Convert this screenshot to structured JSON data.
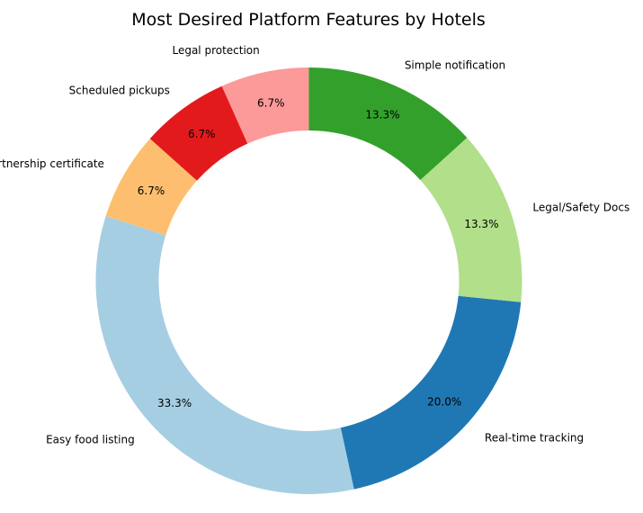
{
  "chart_data": {
    "type": "pie",
    "variant": "donut",
    "title": "Most Desired Platform Features by Hotels",
    "value_format": "percent",
    "legend": "none",
    "start_angle_deg": 90,
    "direction": "counterclockwise",
    "slices": [
      {
        "label": "Legal protection",
        "value": 6.7,
        "display": "6.7%",
        "color": "#fb9a99"
      },
      {
        "label": "Scheduled pickups",
        "value": 6.7,
        "display": "6.7%",
        "color": "#e31a1c"
      },
      {
        "label": "Partnership certificate",
        "value": 6.7,
        "display": "6.7%",
        "color": "#fdbf6f"
      },
      {
        "label": "Easy food listing",
        "value": 33.3,
        "display": "33.3%",
        "color": "#a6cee3"
      },
      {
        "label": "Real-time tracking",
        "value": 20.0,
        "display": "20.0%",
        "color": "#1f78b4"
      },
      {
        "label": "Legal/Safety Docs",
        "value": 13.3,
        "display": "13.3%",
        "color": "#b2df8a"
      },
      {
        "label": "Simple notification",
        "value": 13.3,
        "display": "13.3%",
        "color": "#33a02c"
      }
    ]
  }
}
